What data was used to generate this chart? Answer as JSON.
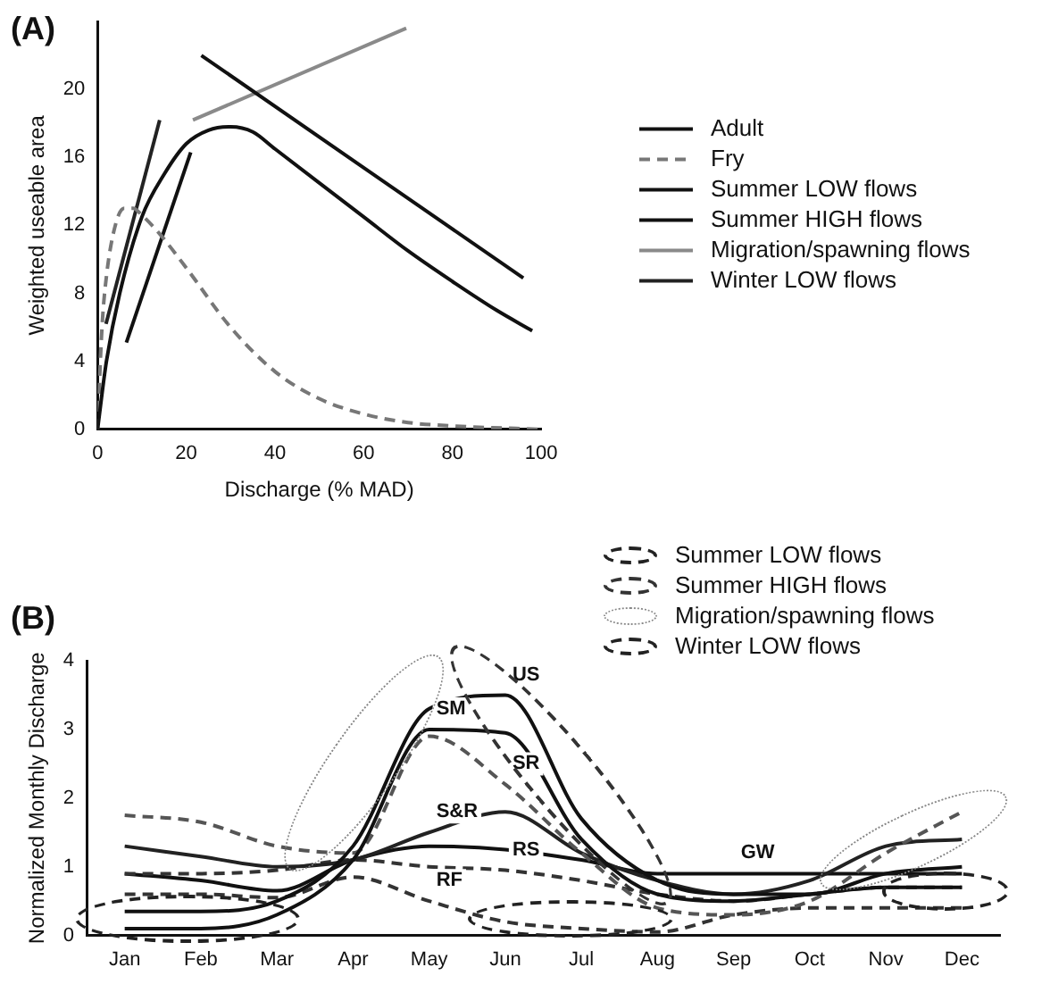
{
  "chart_data": [
    {
      "type": "line",
      "title": "(A)",
      "xlabel": "Discharge (% MAD)",
      "ylabel": "Weighted useable area",
      "xlim": [
        0,
        100
      ],
      "xticks": [
        0,
        20,
        40,
        60,
        80,
        100
      ],
      "ylim": [
        0,
        24
      ],
      "yticks": [
        0,
        4,
        8,
        12,
        16,
        20
      ],
      "legend": "right",
      "series": [
        {
          "name": "Adult",
          "color": "#111111",
          "x": [
            0,
            2,
            5,
            10,
            15,
            20,
            25,
            30,
            35,
            40,
            50,
            60,
            70,
            80,
            90,
            98
          ],
          "values": [
            0,
            4,
            8,
            12.5,
            15,
            16.8,
            17.6,
            17.8,
            17.5,
            16.5,
            14.5,
            12.5,
            10.5,
            8.7,
            7,
            5.8
          ]
        },
        {
          "name": "Fry",
          "color": "#777777",
          "line_style": "dashed",
          "x": [
            0,
            1,
            2,
            4,
            6,
            8,
            10,
            14,
            20,
            30,
            40,
            50,
            60,
            70,
            80,
            100
          ],
          "values": [
            0,
            6,
            9,
            12,
            13,
            13,
            12.6,
            11.5,
            9.5,
            6,
            3.4,
            1.8,
            0.9,
            0.4,
            0.2,
            0
          ]
        },
        {
          "name": "Summer LOW flows",
          "color": "#111111",
          "x": [
            6.5,
            21
          ],
          "values": [
            5.1,
            16.3
          ]
        },
        {
          "name": "Summer HIGH flows",
          "color": "#111111",
          "x": [
            23.4,
            96
          ],
          "values": [
            22,
            8.9
          ]
        },
        {
          "name": "Migration/spawning flows",
          "color": "#8a8a8a",
          "x": [
            21.5,
            69.6
          ],
          "values": [
            18.2,
            23.6
          ]
        },
        {
          "name": "Winter LOW flows",
          "color": "#222222",
          "x": [
            1.9,
            14
          ],
          "values": [
            6.2,
            18.2
          ]
        }
      ]
    },
    {
      "type": "line",
      "title": "(B)",
      "ylabel": "Normalized Monthly Discharge",
      "categories": [
        "Jan",
        "Feb",
        "Mar",
        "Apr",
        "May",
        "Jun",
        "Jul",
        "Aug",
        "Sep",
        "Oct",
        "Nov",
        "Dec"
      ],
      "ylim": [
        0,
        4
      ],
      "yticks": [
        0,
        1,
        2,
        3,
        4
      ],
      "legend": "top right",
      "series": [
        {
          "color": "#111111",
          "values": [
            0.35,
            0.35,
            0.5,
            1.3,
            3.3,
            3.5,
            1.7,
            0.8,
            0.6,
            0.6,
            0.9,
            1.0
          ]
        },
        {
          "color": "#111111",
          "values": [
            0.1,
            0.1,
            0.3,
            1.1,
            3.0,
            2.95,
            1.4,
            0.6,
            0.5,
            0.6,
            0.7,
            0.7
          ]
        },
        {
          "color": "#555555",
          "line_style": "dashed",
          "values": [
            1.75,
            1.65,
            1.3,
            1.2,
            2.9,
            2.2,
            1.2,
            0.4,
            0.3,
            0.5,
            1.2,
            1.8
          ]
        },
        {
          "color": "#222222",
          "values": [
            1.3,
            1.15,
            1.0,
            1.1,
            1.5,
            1.8,
            1.2,
            0.8,
            0.6,
            0.8,
            1.3,
            1.4
          ]
        },
        {
          "color": "#333333",
          "line_style": "dashed",
          "values": [
            0.9,
            0.9,
            0.95,
            1.1,
            1.0,
            0.95,
            0.8,
            0.6,
            0.5,
            0.6,
            0.7,
            0.7
          ]
        },
        {
          "color": "#333333",
          "line_style": "dashed",
          "values": [
            0.6,
            0.6,
            0.55,
            0.85,
            0.5,
            0.2,
            0.1,
            0.05,
            0.3,
            0.4,
            0.4,
            0.4
          ]
        },
        {
          "color": "#111111",
          "values": [
            0.9,
            0.8,
            0.65,
            1.1,
            1.3,
            1.25,
            1.1,
            0.9,
            0.9,
            0.9,
            0.9,
            0.9
          ]
        }
      ],
      "annotations": [
        "Summer LOW flows",
        "Summer HIGH flows",
        "Migration/spawning flows",
        "Winter LOW flows",
        {
          "text": "US",
          "x": "Jun",
          "y": 3.5
        },
        {
          "text": "SM",
          "x": "May",
          "y": 3.0
        },
        {
          "text": "SR",
          "x": "Jun",
          "y": 2.2
        },
        {
          "text": "S&R",
          "x": "May",
          "y": 1.5
        },
        {
          "text": "RS",
          "x": "Jun",
          "y": 0.95
        },
        {
          "text": "RF",
          "x": "May",
          "y": 0.5
        },
        {
          "text": "GW",
          "x": "Sep",
          "y": 0.9
        }
      ]
    }
  ]
}
